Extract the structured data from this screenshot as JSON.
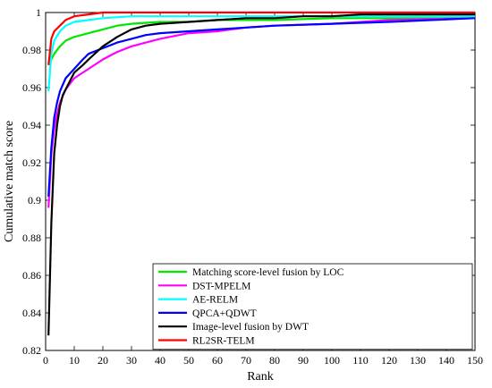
{
  "chart_data": {
    "type": "line",
    "xlabel": "Rank",
    "ylabel": "Cumulative match score",
    "xlim": [
      0,
      150
    ],
    "ylim": [
      0.82,
      1.0
    ],
    "xticks": [
      0,
      10,
      20,
      30,
      40,
      50,
      60,
      70,
      80,
      90,
      100,
      110,
      120,
      130,
      140,
      150
    ],
    "yticks": [
      0.82,
      0.84,
      0.86,
      0.88,
      0.9,
      0.92,
      0.94,
      0.96,
      0.98,
      1
    ],
    "grid": false,
    "legend_position": "bottom-right",
    "series": [
      {
        "name": "Matching score-level fusion by LOC",
        "color": "#00e600",
        "points": [
          [
            1,
            0.972
          ],
          [
            2,
            0.975
          ],
          [
            3,
            0.978
          ],
          [
            5,
            0.982
          ],
          [
            7,
            0.985
          ],
          [
            10,
            0.987
          ],
          [
            15,
            0.989
          ],
          [
            20,
            0.991
          ],
          [
            25,
            0.993
          ],
          [
            30,
            0.994
          ],
          [
            40,
            0.995
          ],
          [
            50,
            0.995
          ],
          [
            60,
            0.996
          ],
          [
            80,
            0.996
          ],
          [
            100,
            0.997
          ],
          [
            120,
            0.997
          ],
          [
            150,
            0.997
          ]
        ]
      },
      {
        "name": "DST-MPELM",
        "color": "#ff00ff",
        "points": [
          [
            1,
            0.896
          ],
          [
            2,
            0.925
          ],
          [
            3,
            0.938
          ],
          [
            4,
            0.946
          ],
          [
            5,
            0.952
          ],
          [
            7,
            0.959
          ],
          [
            10,
            0.965
          ],
          [
            15,
            0.97
          ],
          [
            20,
            0.975
          ],
          [
            25,
            0.979
          ],
          [
            30,
            0.982
          ],
          [
            40,
            0.986
          ],
          [
            50,
            0.989
          ],
          [
            60,
            0.99
          ],
          [
            70,
            0.992
          ],
          [
            80,
            0.993
          ],
          [
            100,
            0.994
          ],
          [
            120,
            0.996
          ],
          [
            150,
            0.997
          ]
        ]
      },
      {
        "name": "AE-RELM",
        "color": "#00ffff",
        "points": [
          [
            1,
            0.958
          ],
          [
            2,
            0.978
          ],
          [
            3,
            0.985
          ],
          [
            5,
            0.99
          ],
          [
            7,
            0.993
          ],
          [
            10,
            0.995
          ],
          [
            15,
            0.996
          ],
          [
            20,
            0.997
          ],
          [
            30,
            0.998
          ],
          [
            50,
            0.998
          ],
          [
            80,
            0.998
          ],
          [
            100,
            0.998
          ],
          [
            150,
            0.998
          ]
        ]
      },
      {
        "name": "QPCA+QDWT",
        "color": "#0000ff",
        "points": [
          [
            1,
            0.902
          ],
          [
            2,
            0.928
          ],
          [
            3,
            0.944
          ],
          [
            4,
            0.952
          ],
          [
            5,
            0.958
          ],
          [
            7,
            0.965
          ],
          [
            10,
            0.97
          ],
          [
            13,
            0.975
          ],
          [
            15,
            0.978
          ],
          [
            20,
            0.981
          ],
          [
            25,
            0.984
          ],
          [
            30,
            0.986
          ],
          [
            35,
            0.988
          ],
          [
            40,
            0.989
          ],
          [
            50,
            0.99
          ],
          [
            60,
            0.991
          ],
          [
            70,
            0.992
          ],
          [
            80,
            0.993
          ],
          [
            100,
            0.994
          ],
          [
            120,
            0.995
          ],
          [
            150,
            0.997
          ]
        ]
      },
      {
        "name": "Image-level fusion by DWT",
        "color": "#000000",
        "points": [
          [
            1,
            0.828
          ],
          [
            2,
            0.888
          ],
          [
            3,
            0.925
          ],
          [
            4,
            0.94
          ],
          [
            5,
            0.95
          ],
          [
            6,
            0.956
          ],
          [
            8,
            0.962
          ],
          [
            10,
            0.968
          ],
          [
            13,
            0.972
          ],
          [
            15,
            0.975
          ],
          [
            20,
            0.982
          ],
          [
            25,
            0.987
          ],
          [
            30,
            0.991
          ],
          [
            35,
            0.993
          ],
          [
            40,
            0.994
          ],
          [
            50,
            0.995
          ],
          [
            60,
            0.996
          ],
          [
            70,
            0.997
          ],
          [
            80,
            0.997
          ],
          [
            90,
            0.998
          ],
          [
            100,
            0.998
          ],
          [
            110,
            0.999
          ],
          [
            115,
            0.999
          ],
          [
            150,
            0.999
          ]
        ]
      },
      {
        "name": "RL2SR-TELM",
        "color": "#ff0000",
        "points": [
          [
            1,
            0.972
          ],
          [
            2,
            0.986
          ],
          [
            3,
            0.99
          ],
          [
            5,
            0.993
          ],
          [
            7,
            0.996
          ],
          [
            10,
            0.998
          ],
          [
            15,
            0.999
          ],
          [
            20,
            1.0
          ],
          [
            150,
            1.0
          ]
        ]
      }
    ]
  }
}
